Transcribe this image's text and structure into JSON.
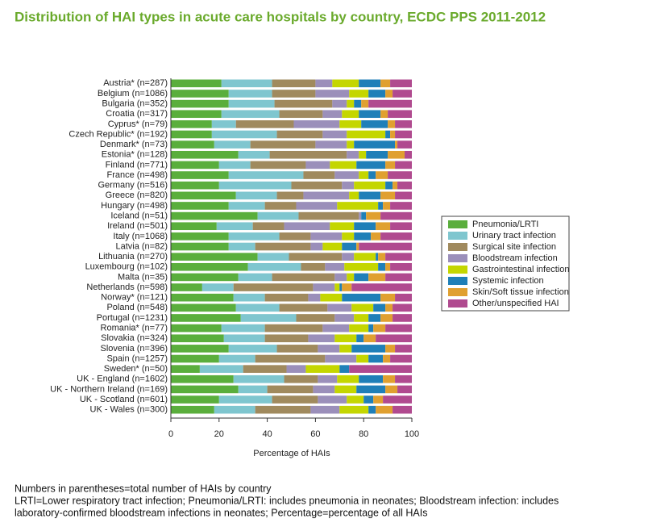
{
  "chart_data": {
    "type": "stacked_barh",
    "title": "Distribution of HAI types in acute care hospitals by country, ECDC PPS 2011-2012",
    "x_label": "Percentage of HAIs",
    "categories": [
      "Austria* (n=287)",
      "Belgium (n=1086)",
      "Bulgaria (n=352)",
      "Croatia (n=317)",
      "Cyprus* (n=79)",
      "Czech Republic* (n=192)",
      "Denmark* (n=73)",
      "Estonia* (n=128)",
      "Finland (n=771)",
      "France (n=498)",
      "Germany (n=516)",
      "Greece (n=820)",
      "Hungary (n=498)",
      "Iceland (n=51)",
      "Ireland (n=501)",
      "Italy (n=1068)",
      "Latvia (n=82)",
      "Lithuania (n=270)",
      "Luxembourg (n=102)",
      "Malta (n=35)",
      "Netherlands (n=598)",
      "Norway* (n=121)",
      "Poland (n=548)",
      "Portugal (n=1231)",
      "Romania* (n=77)",
      "Slovakia (n=324)",
      "Slovenia (n=396)",
      "Spain (n=1257)",
      "Sweden* (n=50)",
      "UK - England (n=1602)",
      "UK - Northern Ireland (n=169)",
      "UK - Scotland (n=601)",
      "UK - Wales (n=300)"
    ],
    "series": [
      {
        "name": "Pneumonia/LRTI",
        "color": "#5aae3c",
        "values": [
          21,
          24,
          24,
          21,
          17,
          17,
          18,
          28,
          20,
          24,
          20,
          27,
          24,
          36,
          19,
          24,
          24,
          36,
          32,
          28,
          13,
          26,
          27,
          29,
          21,
          22,
          24,
          20,
          12,
          26,
          28,
          20,
          18
        ]
      },
      {
        "name": "Urinary tract infection",
        "color": "#7fc6cf",
        "values": [
          21,
          18,
          19,
          24,
          10,
          27,
          15,
          13,
          13,
          31,
          30,
          17,
          15,
          17,
          15,
          21,
          11,
          13,
          22,
          14,
          13,
          13,
          18,
          23,
          18,
          17,
          20,
          15,
          18,
          21,
          12,
          22,
          17
        ]
      },
      {
        "name": "Surgical site infection",
        "color": "#a08a5e",
        "values": [
          18,
          18,
          24,
          18,
          24,
          19,
          27,
          32,
          23,
          13,
          21,
          11,
          13,
          25,
          13,
          13,
          23,
          22,
          10,
          26,
          33,
          18,
          20,
          16,
          24,
          18,
          17,
          29,
          18,
          14,
          19,
          19,
          23
        ]
      },
      {
        "name": "Bloodstream infection",
        "color": "#9b8fba",
        "values": [
          7,
          14,
          6,
          8,
          19,
          10,
          13,
          5,
          10,
          10,
          5,
          19,
          17,
          1,
          19,
          13,
          5,
          5,
          8,
          5,
          9,
          5,
          10,
          8,
          11,
          11,
          9,
          13,
          8,
          8,
          9,
          12,
          12
        ]
      },
      {
        "name": "Gastrointestinal infection",
        "color": "#c4d600",
        "values": [
          11,
          8,
          3,
          7,
          9,
          16,
          3,
          3,
          11,
          4,
          13,
          4,
          17,
          0,
          10,
          5,
          8,
          9,
          14,
          3,
          2,
          9,
          9,
          6,
          8,
          9,
          5,
          5,
          14,
          9,
          9,
          7,
          12
        ]
      },
      {
        "name": "Systemic infection",
        "color": "#1f7fb8",
        "values": [
          9,
          7,
          3,
          9,
          11,
          2,
          17,
          9,
          12,
          3,
          3,
          9,
          2,
          2,
          9,
          7,
          6,
          1,
          3,
          6,
          1,
          16,
          5,
          5,
          2,
          3,
          14,
          6,
          4,
          10,
          12,
          4,
          3
        ]
      },
      {
        "name": "Skin/Soft tissue infection",
        "color": "#e0a030",
        "values": [
          4,
          3,
          3,
          3,
          3,
          2,
          1,
          7,
          4,
          5,
          2,
          6,
          3,
          6,
          6,
          4,
          1,
          3,
          2,
          7,
          4,
          6,
          3,
          5,
          5,
          5,
          4,
          3,
          0,
          5,
          5,
          4,
          7
        ]
      },
      {
        "name": "Other/unspecified HAI",
        "color": "#b04a8f",
        "values": [
          9,
          8,
          18,
          10,
          7,
          7,
          6,
          3,
          7,
          10,
          6,
          7,
          9,
          13,
          9,
          13,
          22,
          11,
          9,
          11,
          25,
          7,
          8,
          8,
          11,
          15,
          7,
          9,
          26,
          7,
          6,
          12,
          8
        ]
      }
    ],
    "xlim": [
      0,
      100
    ],
    "xticks": [
      0,
      20,
      40,
      60,
      80,
      100
    ],
    "legend": "right",
    "notes": [
      "Numbers in parentheses=total number of HAIs by country",
      "LRTI=Lower respiratory tract infection; Pneumonia/LRTI: includes pneumonia in neonates; Bloodstream infection: includes",
      "laboratory-confirmed bloodstream infections in neonates; Percentage=percentage of all HAIs"
    ]
  }
}
